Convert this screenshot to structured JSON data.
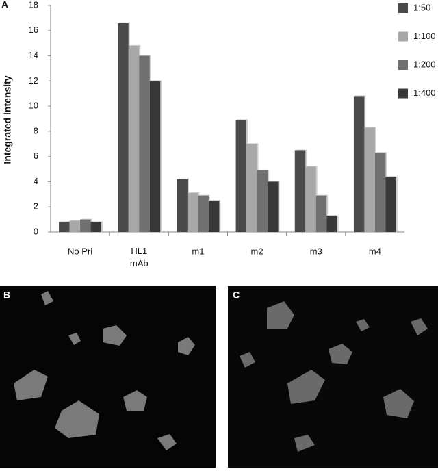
{
  "chart_data": {
    "type": "bar",
    "panel_label": "A",
    "ylabel": "Integrated intensity",
    "categories": [
      "No Pri",
      "HL1\nmAb",
      "m1",
      "m2",
      "m3",
      "m4"
    ],
    "series": [
      {
        "name": "1:50",
        "color": "#4a4a4a",
        "values": [
          0.8,
          16.6,
          4.2,
          8.9,
          6.5,
          10.8
        ]
      },
      {
        "name": "1:100",
        "color": "#a8a8a8",
        "values": [
          0.9,
          14.8,
          3.1,
          7.0,
          5.2,
          8.3
        ]
      },
      {
        "name": "1:200",
        "color": "#707070",
        "values": [
          1.0,
          14.0,
          2.9,
          4.9,
          2.9,
          6.3
        ]
      },
      {
        "name": "1:400",
        "color": "#383838",
        "values": [
          0.8,
          12.0,
          2.5,
          4.0,
          1.3,
          4.4
        ]
      }
    ],
    "ylim": [
      0,
      18
    ],
    "yticks": [
      0,
      2,
      4,
      6,
      8,
      10,
      12,
      14,
      16,
      18
    ]
  },
  "images": [
    {
      "label": "B"
    },
    {
      "label": "C"
    }
  ]
}
